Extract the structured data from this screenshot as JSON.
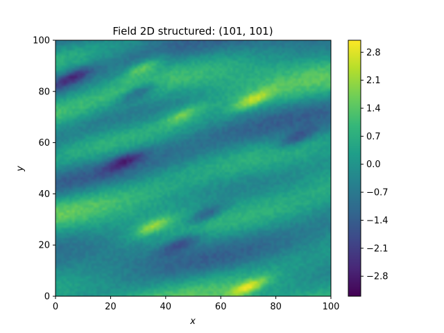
{
  "chart_data": {
    "type": "heatmap",
    "title": "Field 2D structured: (101, 101)",
    "xlabel": "x",
    "ylabel": "y",
    "xlim": [
      0,
      100
    ],
    "ylim": [
      0,
      100
    ],
    "grid_shape": [
      101,
      101
    ],
    "x_ticks": [
      0,
      20,
      40,
      60,
      80,
      100
    ],
    "y_ticks": [
      0,
      20,
      40,
      60,
      80,
      100
    ],
    "x_tick_labels": [
      "0",
      "20",
      "40",
      "60",
      "80",
      "100"
    ],
    "y_tick_labels": [
      "0",
      "20",
      "40",
      "60",
      "80",
      "100"
    ],
    "colormap": "viridis",
    "colorbar": {
      "vmin": -3.3,
      "vmax": 3.1,
      "ticks": [
        2.8,
        2.1,
        1.4,
        0.7,
        0.0,
        -0.7,
        -1.4,
        -2.1,
        -2.8
      ],
      "tick_labels": [
        "2.8",
        "2.1",
        "1.4",
        "0.7",
        "0.0",
        "−0.7",
        "−1.4",
        "−2.1",
        "−2.8"
      ]
    },
    "description_note": "Anisotropic random field with bands oriented about 25 degrees upward to the right",
    "features": [
      {
        "kind": "high",
        "x": 35,
        "y": 27,
        "value": 2.6
      },
      {
        "kind": "high",
        "x": 70,
        "y": 3,
        "value": 3.0
      },
      {
        "kind": "high",
        "x": 72,
        "y": 77,
        "value": 2.7
      },
      {
        "kind": "high",
        "x": 32,
        "y": 90,
        "value": 2.3
      },
      {
        "kind": "high",
        "x": 46,
        "y": 71,
        "value": 2.2
      },
      {
        "kind": "low",
        "x": 25,
        "y": 53,
        "value": -2.6
      },
      {
        "kind": "low",
        "x": 30,
        "y": 80,
        "value": -2.5
      },
      {
        "kind": "low",
        "x": 55,
        "y": 32,
        "value": -2.4
      },
      {
        "kind": "low",
        "x": 6,
        "y": 86,
        "value": -2.6
      },
      {
        "kind": "low",
        "x": 45,
        "y": 20,
        "value": -2.2
      },
      {
        "kind": "low",
        "x": 88,
        "y": 62,
        "value": -2.3
      }
    ]
  },
  "colors": {
    "viridis_stops": [
      "#440154",
      "#482878",
      "#3e4989",
      "#31688e",
      "#26828e",
      "#1f9e89",
      "#35b779",
      "#6ece58",
      "#b5de2b",
      "#fde725"
    ]
  }
}
